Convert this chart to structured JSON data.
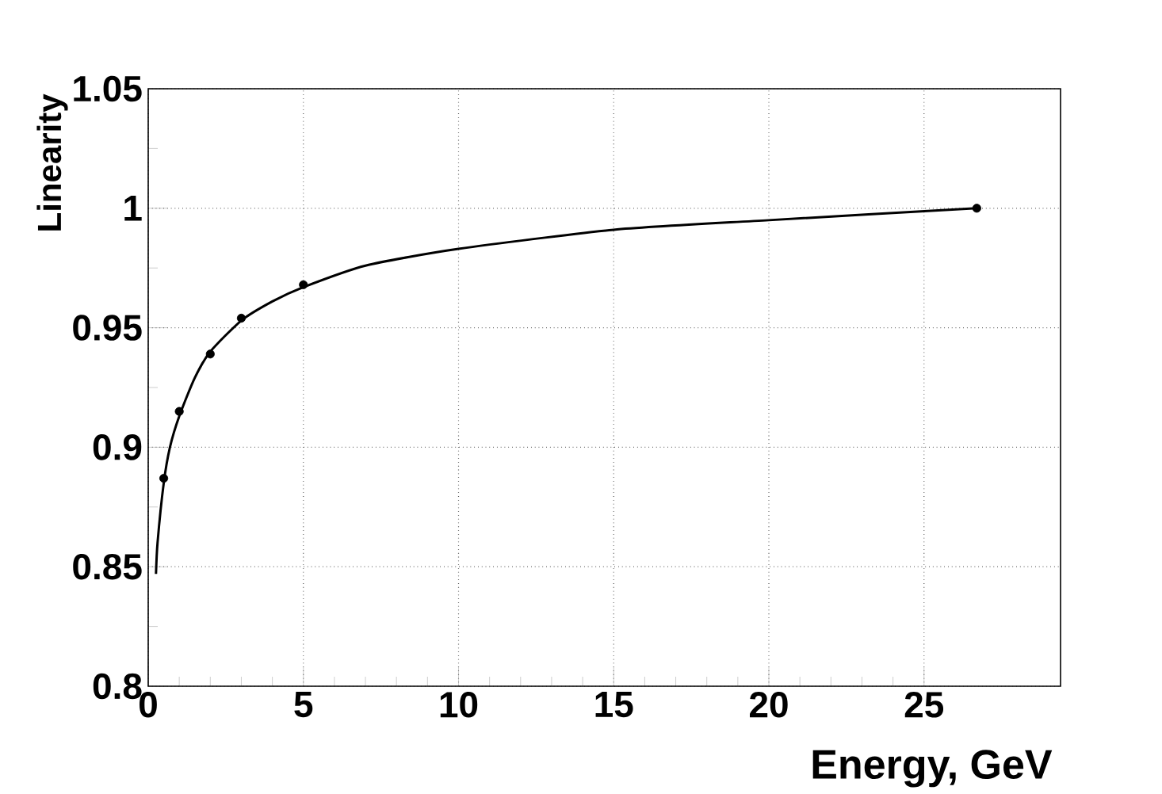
{
  "chart_data": {
    "type": "scatter",
    "xlabel": "Energy, GeV",
    "ylabel": "Linearity",
    "xlim": [
      0,
      29.4
    ],
    "ylim": [
      0.8,
      1.05
    ],
    "xticks": [
      0,
      5,
      10,
      15,
      20,
      25
    ],
    "yticks": [
      0.8,
      0.85,
      0.9,
      0.95,
      1,
      1.05
    ],
    "grid": true,
    "series": [
      {
        "type": "line",
        "color": "#000000",
        "marker": "none",
        "line_style": "solid",
        "x": [
          0.25,
          0.3,
          0.5,
          0.7,
          1,
          1.5,
          2,
          3,
          4,
          5,
          7,
          10,
          15,
          20,
          26.7
        ],
        "values": [
          0.847,
          0.86,
          0.885,
          0.9,
          0.913,
          0.929,
          0.94,
          0.953,
          0.961,
          0.967,
          0.976,
          0.983,
          0.991,
          0.995,
          1.0
        ]
      },
      {
        "color": "#000000",
        "marker": "circle",
        "x": [
          0.5,
          1,
          2,
          3,
          5,
          26.7
        ],
        "values": [
          0.887,
          0.915,
          0.939,
          0.954,
          0.968,
          1.0
        ]
      }
    ]
  }
}
